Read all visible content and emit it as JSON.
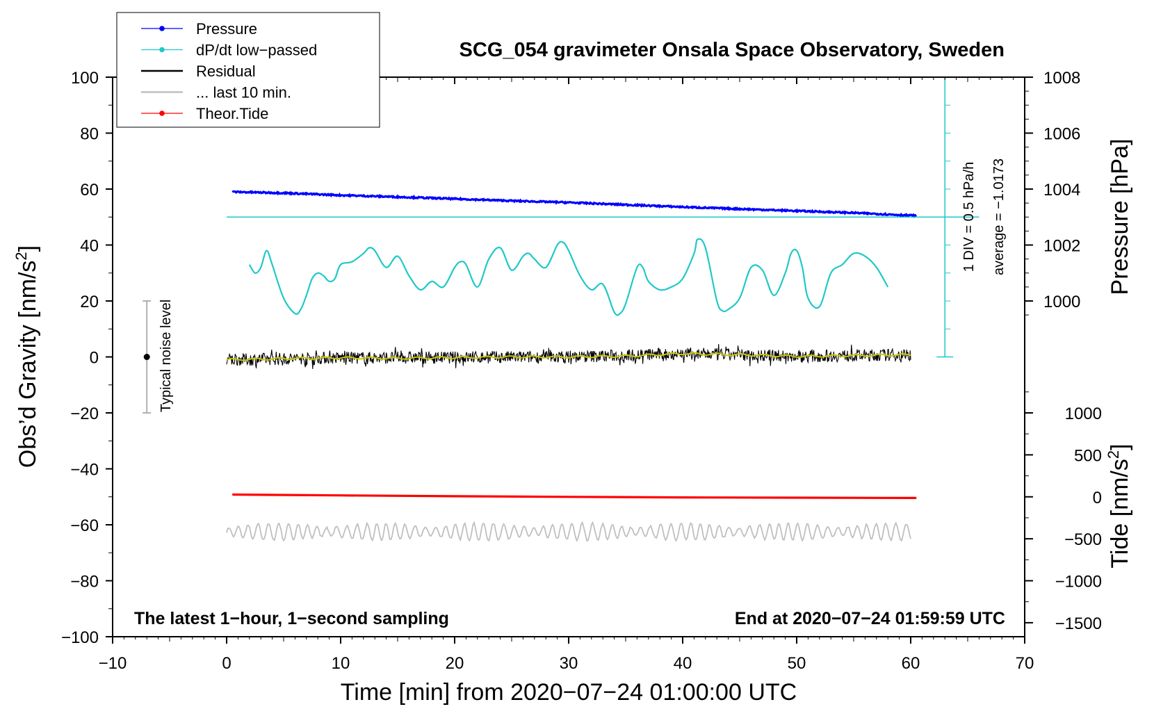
{
  "chart_data": {
    "type": "line",
    "title": "SCG_054 gravimeter Onsala Space Observatory, Sweden",
    "xlabel": "Time [min] from 2020−07−24 01:00:00 UTC",
    "ylabel_left_prefix": "Obs’d Gravity [nm/s",
    "ylabel_left_sup": "2",
    "ylabel_left_suffix": "]",
    "ylabel_right_pressure": "Pressure [hPa]",
    "ylabel_right_tide_prefix": "Tide [nm/s",
    "ylabel_right_tide_sup": "2",
    "ylabel_right_tide_suffix": "]",
    "xlim": [
      -10,
      70
    ],
    "ylim": [
      -100,
      100
    ],
    "x_ticks": [
      -10,
      0,
      10,
      20,
      30,
      40,
      50,
      60,
      70
    ],
    "x_tick_labels": [
      "−10",
      "0",
      "10",
      "20",
      "30",
      "40",
      "50",
      "60",
      "70"
    ],
    "y_ticks": [
      100,
      80,
      60,
      40,
      20,
      0,
      -20,
      -40,
      -60,
      -80,
      -100
    ],
    "y_tick_labels": [
      "100",
      "80",
      "60",
      "40",
      "20",
      "0",
      "−20",
      "−40",
      "−60",
      "−80",
      "−100"
    ],
    "pressure_axis": {
      "ticks": [
        1000,
        1002,
        1004,
        1006,
        1008
      ],
      "tick_labels": [
        "1000",
        "1002",
        "1004",
        "1006",
        "1008"
      ],
      "gravity_at_1000": 20,
      "gravity_per_hpa": 10
    },
    "tide_axis": {
      "ticks": [
        1000,
        500,
        0,
        -500,
        -1000,
        -1500
      ],
      "tick_labels": [
        "1000",
        "500",
        "0",
        "−500",
        "−1000",
        "−1500"
      ],
      "gravity_at_0": -50,
      "gravity_per_unit": 0.03
    },
    "dpdt_scale": {
      "label_div": "1 DIV = 0.5 hPa/h",
      "label_avg": "average = −1.0173",
      "zero_gravity": 0,
      "top_gravity": 100,
      "baseline_gravity": 50,
      "x_position": 63
    },
    "noise_bar": {
      "label": "Typical noise level",
      "x": -7,
      "center": 0,
      "low": -20,
      "high": 20
    },
    "notes": {
      "left": "The latest 1−hour, 1−second sampling",
      "right": "End at 2020−07−24 01:59:59 UTC"
    },
    "legend": [
      {
        "label": "Pressure",
        "color": "#0000ff",
        "marker": true
      },
      {
        "label": "dP/dt low−passed",
        "color": "#20c8c8",
        "marker": true
      },
      {
        "label": "Residual",
        "color": "#000000",
        "marker": false
      },
      {
        "label": "... last 10 min.",
        "color": "#bfbfbf",
        "marker": false
      },
      {
        "label": "Theor.Tide",
        "color": "#ff0000",
        "marker": true
      }
    ],
    "series": [
      {
        "name": "Pressure",
        "color": "#0000ff",
        "unit": "gravity-equivalent nm/s2 (1004 hPa = 60, 1003.2 hPa = 52)",
        "x": [
          0.5,
          5,
          10,
          15,
          20,
          25,
          30,
          35,
          40,
          45,
          50,
          55,
          60.5
        ],
        "values": [
          59.0,
          58.6,
          57.8,
          57.2,
          56.5,
          55.8,
          55.2,
          54.4,
          53.6,
          52.9,
          52.2,
          51.5,
          50.5
        ]
      },
      {
        "name": "dP/dt low-passed",
        "color": "#20c8c8",
        "x": [
          2,
          2.5,
          3,
          3.5,
          4,
          5,
          6,
          6.5,
          7,
          7.5,
          8,
          8.5,
          9,
          9.5,
          10,
          11,
          12,
          12.5,
          13,
          14,
          15,
          16,
          17,
          18,
          19,
          20,
          20.5,
          21,
          22,
          23,
          24,
          25,
          26,
          26.5,
          27,
          28,
          29,
          29.5,
          30,
          31,
          32,
          33,
          34,
          34.5,
          35,
          36,
          36.5,
          37,
          38,
          39,
          40,
          41,
          41.3,
          42,
          43,
          43.5,
          44,
          45,
          46,
          47,
          48,
          49,
          49.5,
          50,
          50.5,
          51,
          52,
          53,
          54,
          55,
          56,
          57,
          58
        ],
        "values": [
          33,
          30,
          32,
          38,
          33,
          21,
          15.5,
          17,
          22,
          28,
          30,
          29,
          27,
          28,
          33,
          34,
          37,
          39,
          38,
          32,
          36,
          29,
          24,
          27,
          25,
          32,
          34,
          33,
          25,
          35,
          39,
          31,
          36,
          37,
          35,
          32,
          40,
          41,
          38,
          29,
          24,
          26,
          16,
          15.5,
          19,
          32,
          32,
          27,
          24,
          25,
          28,
          37,
          42,
          39,
          20,
          16.5,
          17,
          21,
          32,
          31,
          22,
          30,
          37,
          38,
          32,
          21,
          18,
          30,
          33,
          37,
          36,
          32,
          25
        ]
      },
      {
        "name": "Residual",
        "color": "#000000",
        "x_start": 0,
        "x_end": 60,
        "center": 0,
        "noise_amplitude": 2.2,
        "trend": [
          [
            0,
            -1
          ],
          [
            10,
            -0.3
          ],
          [
            20,
            -0.2
          ],
          [
            30,
            0
          ],
          [
            40,
            1.2
          ],
          [
            50,
            0.2
          ],
          [
            60,
            0.8
          ]
        ]
      },
      {
        "name": "Residual smoothed",
        "color": "#c8c800",
        "x": [
          0,
          5,
          10,
          15,
          20,
          25,
          30,
          35,
          40,
          45,
          50,
          55,
          60
        ],
        "values": [
          -1.0,
          -0.6,
          -0.3,
          -0.5,
          -0.2,
          0.0,
          0.0,
          0.3,
          1.2,
          0.8,
          0.2,
          0.5,
          0.8
        ]
      },
      {
        "name": "Theor.Tide",
        "color": "#ff0000",
        "unit": "gravity-equivalent nm/s2",
        "x": [
          0.5,
          10,
          20,
          30,
          40,
          50,
          60.5
        ],
        "values": [
          -49.2,
          -49.5,
          -49.8,
          -50.0,
          -50.2,
          -50.3,
          -50.4
        ]
      },
      {
        "name": "... last 10 min.",
        "color": "#bfbfbf",
        "x_start": 0,
        "x_end": 60,
        "center": -62.5,
        "amplitude": 2.2
      }
    ]
  }
}
